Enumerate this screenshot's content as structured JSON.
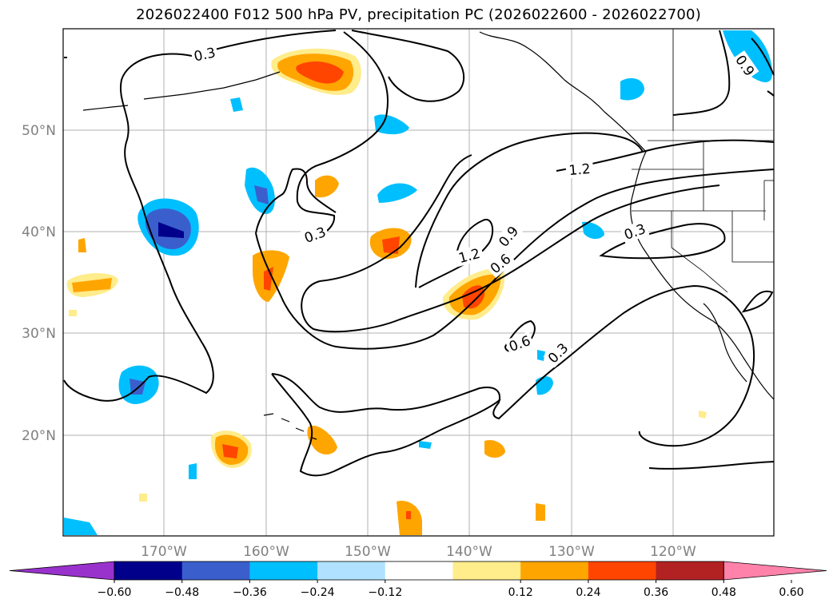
{
  "title": "2026022400 F012 500 hPa PV, precipitation PC (2026022600 - 2026022700)",
  "map": {
    "lon_ticks": [
      "170°W",
      "160°W",
      "150°W",
      "140°W",
      "130°W",
      "120°W"
    ],
    "lat_ticks": [
      "50°N",
      "40°N",
      "30°N",
      "20°N"
    ],
    "contour_labels": [
      "0.3",
      "0.3",
      "1.2",
      "0.9",
      "1.2",
      "0.9",
      "0.6",
      "0.3",
      "0.6",
      "0.3"
    ]
  },
  "colorbar": {
    "colors": [
      "#9932CC",
      "#00008B",
      "#3A5FCD",
      "#00BFFF",
      "#B0E2FF",
      "#FFFFFF",
      "#FFEC8B",
      "#FFA500",
      "#FF4500",
      "#B22222",
      "#FF82AB"
    ],
    "tick_labels": [
      "-0.60",
      "-0.48",
      "-0.36",
      "-0.24",
      "-0.12",
      "0.12",
      "0.24",
      "0.36",
      "0.48",
      "0.60"
    ]
  }
}
